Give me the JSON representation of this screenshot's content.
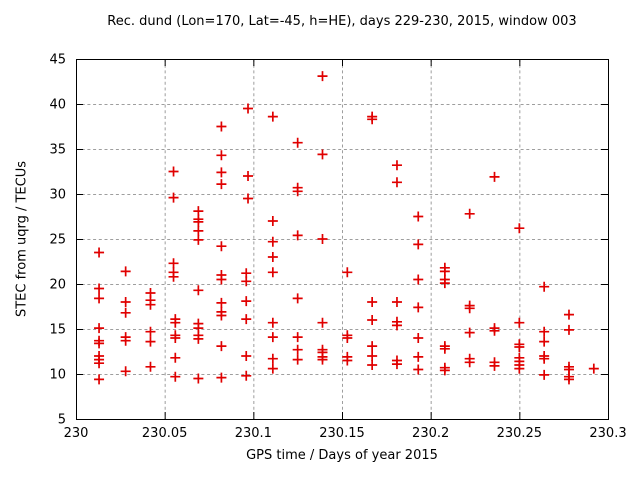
{
  "window": {
    "title": "Rec. dund (Lon=170, Lat=-45, h=HE), days 229-230, 2015, window 003"
  },
  "chart_data": {
    "type": "scatter",
    "title": "Rec. dund (Lon=170, Lat=-45, h=HE), days 229-230, 2015, window 003",
    "xlabel": "GPS time / Days of year 2015",
    "ylabel": "STEC from uqrg / TECUs",
    "xlim": [
      230,
      230.3
    ],
    "ylim": [
      5,
      45
    ],
    "x_ticks": [
      230,
      230.05,
      230.1,
      230.15,
      230.2,
      230.25,
      230.3
    ],
    "x_tick_labels": [
      "230",
      "230.05",
      "230.1",
      "230.15",
      "230.2",
      "230.25",
      "230.3"
    ],
    "y_ticks": [
      5,
      10,
      15,
      20,
      25,
      30,
      35,
      40,
      45
    ],
    "y_tick_labels": [
      "5",
      "10",
      "15",
      "20",
      "25",
      "30",
      "35",
      "40",
      "45"
    ],
    "grid": true,
    "legend_position": "none",
    "marker": "plus",
    "marker_color": "#e00000",
    "grid_color": "#9e9e9e",
    "border_color": "#000000",
    "series": [
      {
        "name": "STEC",
        "points": [
          [
            230.013,
            23.5
          ],
          [
            230.013,
            19.5
          ],
          [
            230.013,
            18.4
          ],
          [
            230.013,
            15.1
          ],
          [
            230.013,
            13.7
          ],
          [
            230.013,
            13.4
          ],
          [
            230.013,
            12.0
          ],
          [
            230.013,
            11.6
          ],
          [
            230.013,
            11.2
          ],
          [
            230.013,
            9.4
          ],
          [
            230.028,
            21.4
          ],
          [
            230.028,
            18.0
          ],
          [
            230.028,
            16.8
          ],
          [
            230.028,
            14.1
          ],
          [
            230.028,
            13.7
          ],
          [
            230.028,
            10.3
          ],
          [
            230.042,
            19.0
          ],
          [
            230.042,
            18.2
          ],
          [
            230.042,
            17.7
          ],
          [
            230.042,
            14.7
          ],
          [
            230.042,
            13.6
          ],
          [
            230.042,
            10.8
          ],
          [
            230.055,
            32.5
          ],
          [
            230.055,
            29.6
          ],
          [
            230.055,
            22.3
          ],
          [
            230.055,
            21.3
          ],
          [
            230.055,
            20.8
          ],
          [
            230.056,
            16.1
          ],
          [
            230.056,
            15.7
          ],
          [
            230.056,
            14.3
          ],
          [
            230.056,
            14.0
          ],
          [
            230.056,
            11.8
          ],
          [
            230.056,
            9.7
          ],
          [
            230.069,
            28.1
          ],
          [
            230.069,
            27.2
          ],
          [
            230.069,
            26.9
          ],
          [
            230.069,
            25.9
          ],
          [
            230.069,
            24.9
          ],
          [
            230.069,
            19.3
          ],
          [
            230.069,
            15.6
          ],
          [
            230.069,
            15.1
          ],
          [
            230.069,
            14.3
          ],
          [
            230.069,
            13.9
          ],
          [
            230.069,
            9.5
          ],
          [
            230.082,
            37.5
          ],
          [
            230.082,
            34.3
          ],
          [
            230.082,
            32.4
          ],
          [
            230.082,
            31.1
          ],
          [
            230.082,
            24.2
          ],
          [
            230.082,
            21.0
          ],
          [
            230.082,
            20.5
          ],
          [
            230.082,
            17.9
          ],
          [
            230.082,
            16.9
          ],
          [
            230.082,
            16.5
          ],
          [
            230.082,
            13.1
          ],
          [
            230.082,
            9.6
          ],
          [
            230.097,
            39.5
          ],
          [
            230.097,
            32.0
          ],
          [
            230.097,
            29.5
          ],
          [
            230.096,
            21.2
          ],
          [
            230.096,
            20.3
          ],
          [
            230.096,
            18.1
          ],
          [
            230.096,
            16.1
          ],
          [
            230.096,
            12.0
          ],
          [
            230.096,
            9.8
          ],
          [
            230.111,
            38.6
          ],
          [
            230.111,
            27.0
          ],
          [
            230.111,
            24.7
          ],
          [
            230.111,
            23.0
          ],
          [
            230.111,
            21.3
          ],
          [
            230.111,
            15.7
          ],
          [
            230.111,
            14.1
          ],
          [
            230.111,
            11.7
          ],
          [
            230.111,
            10.6
          ],
          [
            230.125,
            35.7
          ],
          [
            230.125,
            30.7
          ],
          [
            230.125,
            30.3
          ],
          [
            230.125,
            25.4
          ],
          [
            230.125,
            18.4
          ],
          [
            230.125,
            14.1
          ],
          [
            230.125,
            12.7
          ],
          [
            230.125,
            11.6
          ],
          [
            230.139,
            43.1
          ],
          [
            230.139,
            34.4
          ],
          [
            230.139,
            25.0
          ],
          [
            230.139,
            15.7
          ],
          [
            230.139,
            12.7
          ],
          [
            230.139,
            12.4
          ],
          [
            230.139,
            11.9
          ],
          [
            230.139,
            11.6
          ],
          [
            230.153,
            21.3
          ],
          [
            230.153,
            14.3
          ],
          [
            230.153,
            14.0
          ],
          [
            230.153,
            11.9
          ],
          [
            230.153,
            11.5
          ],
          [
            230.167,
            38.6
          ],
          [
            230.167,
            38.3
          ],
          [
            230.167,
            18.0
          ],
          [
            230.167,
            16.0
          ],
          [
            230.167,
            13.1
          ],
          [
            230.167,
            12.0
          ],
          [
            230.167,
            11.0
          ],
          [
            230.181,
            33.2
          ],
          [
            230.181,
            31.3
          ],
          [
            230.181,
            18.0
          ],
          [
            230.181,
            15.8
          ],
          [
            230.181,
            15.4
          ],
          [
            230.181,
            11.5
          ],
          [
            230.181,
            11.1
          ],
          [
            230.193,
            27.5
          ],
          [
            230.193,
            24.4
          ],
          [
            230.193,
            20.5
          ],
          [
            230.193,
            17.4
          ],
          [
            230.193,
            14.0
          ],
          [
            230.193,
            11.9
          ],
          [
            230.193,
            10.5
          ],
          [
            230.208,
            21.8
          ],
          [
            230.208,
            21.4
          ],
          [
            230.208,
            20.5
          ],
          [
            230.208,
            20.1
          ],
          [
            230.208,
            13.1
          ],
          [
            230.208,
            12.8
          ],
          [
            230.208,
            10.7
          ],
          [
            230.208,
            10.4
          ],
          [
            230.222,
            27.8
          ],
          [
            230.222,
            17.6
          ],
          [
            230.222,
            17.3
          ],
          [
            230.222,
            14.6
          ],
          [
            230.222,
            11.7
          ],
          [
            230.222,
            11.3
          ],
          [
            230.236,
            31.9
          ],
          [
            230.236,
            15.1
          ],
          [
            230.236,
            14.8
          ],
          [
            230.236,
            11.3
          ],
          [
            230.236,
            10.9
          ],
          [
            230.25,
            26.2
          ],
          [
            230.25,
            15.7
          ],
          [
            230.25,
            13.3
          ],
          [
            230.25,
            13.0
          ],
          [
            230.25,
            11.8
          ],
          [
            230.25,
            11.4
          ],
          [
            230.25,
            11.0
          ],
          [
            230.25,
            10.6
          ],
          [
            230.264,
            19.7
          ],
          [
            230.264,
            14.7
          ],
          [
            230.264,
            13.6
          ],
          [
            230.264,
            12.0
          ],
          [
            230.264,
            11.7
          ],
          [
            230.264,
            9.9
          ],
          [
            230.278,
            16.6
          ],
          [
            230.278,
            14.9
          ],
          [
            230.278,
            10.8
          ],
          [
            230.278,
            10.5
          ],
          [
            230.278,
            9.7
          ],
          [
            230.278,
            9.4
          ],
          [
            230.292,
            10.6
          ]
        ]
      }
    ]
  }
}
